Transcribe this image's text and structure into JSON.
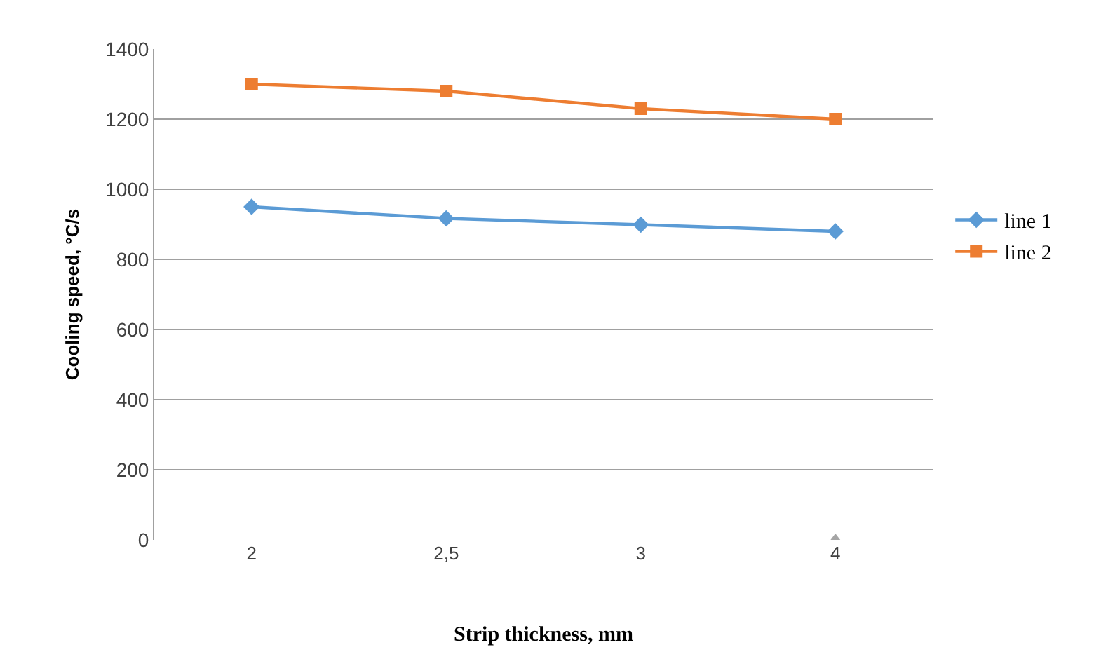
{
  "chart_data": {
    "type": "line",
    "xlabel": "Strip thickness, mm",
    "ylabel": "Cooling speed, °C/s",
    "categories": [
      "2",
      "2,5",
      "3",
      "4"
    ],
    "series": [
      {
        "name": "line 1",
        "color": "#5b9bd5",
        "values": [
          950,
          917,
          899,
          880
        ],
        "marker": "diamond"
      },
      {
        "name": "line 2",
        "color": "#ed7d31",
        "values": [
          1300,
          1280,
          1230,
          1200
        ],
        "marker": "square"
      },
      {
        "color": "#a5a5a5",
        "values": [
          null,
          null,
          null,
          0
        ],
        "marker": "triangle",
        "type": "scatter"
      }
    ],
    "ylim": [
      0,
      1400
    ],
    "yticks": [
      0,
      200,
      400,
      600,
      800,
      1000,
      1200,
      1400
    ],
    "grid": "y",
    "legend": "right"
  }
}
